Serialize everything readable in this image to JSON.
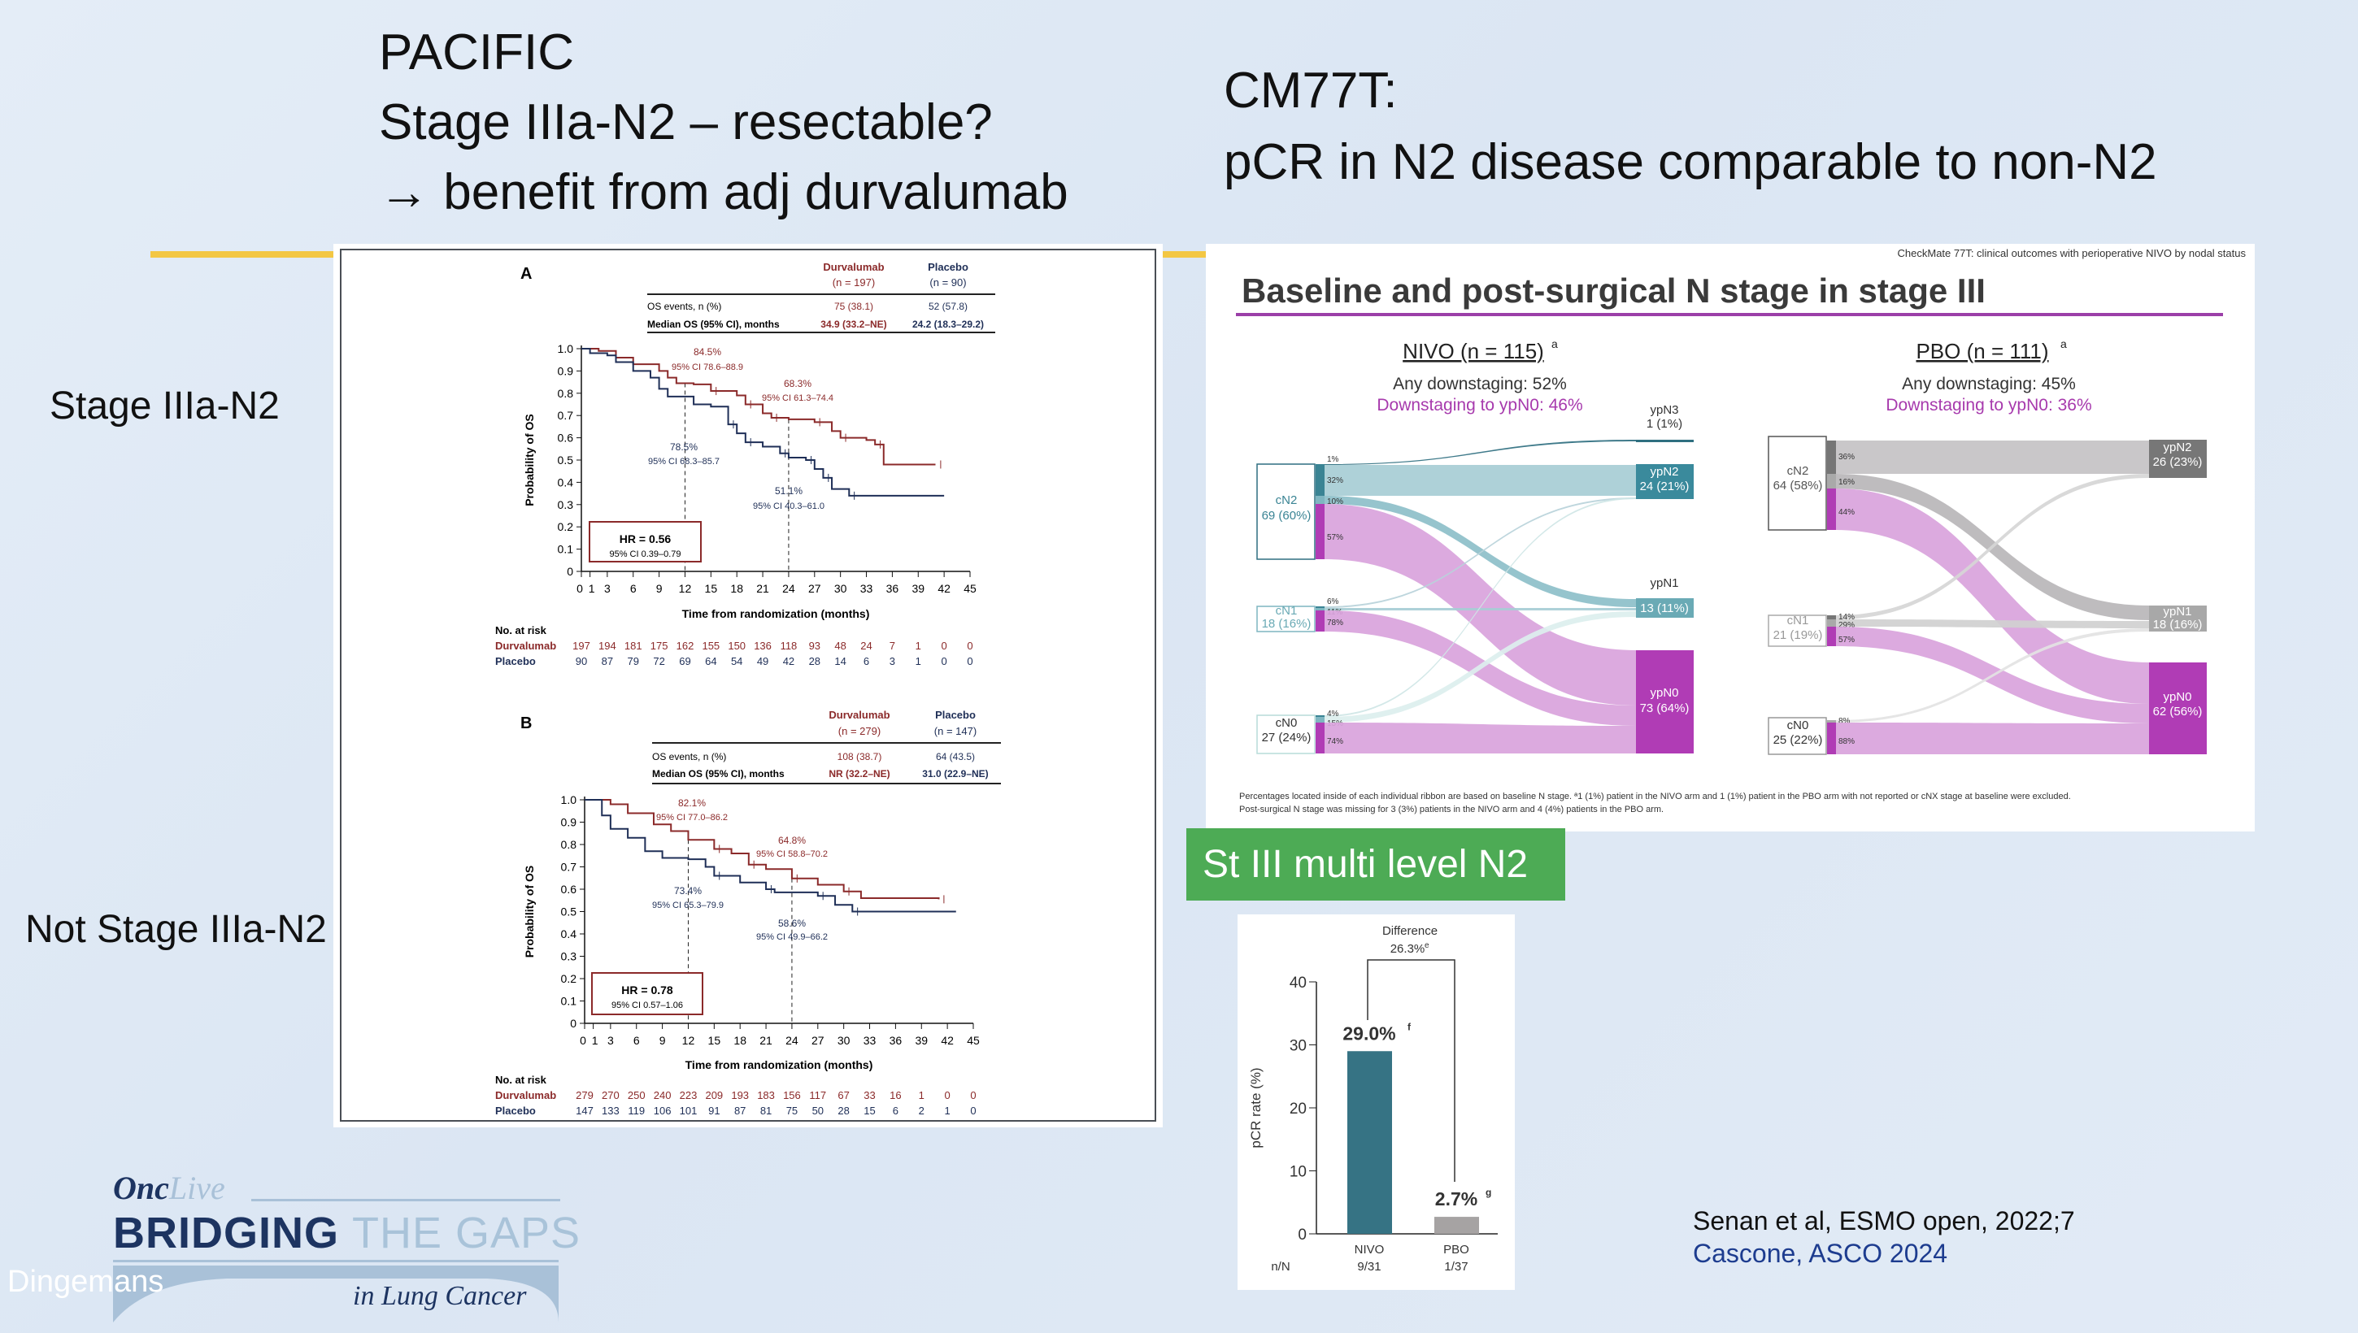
{
  "slide": {
    "left_title_lines": [
      "PACIFIC",
      "Stage IIIa-N2 – resectable?",
      "→ benefit from adj durvalumab"
    ],
    "right_title_lines": [
      "CM77T:",
      "pCR in N2 disease comparable to non-N2"
    ],
    "row_label_top": "Stage IIIa-N2",
    "row_label_bottom": "Not Stage IIIa-N2",
    "green_box": "St III multi level N2",
    "citations": [
      "Senan et al, ESMO open, 2022;7",
      "Cascone, ASCO 2024"
    ],
    "author": "Dingemans"
  },
  "logo": {
    "brand_a": "Onc",
    "brand_b": "Live",
    "line1_a": "BRIDGING",
    "line1_b": "THE GAPS",
    "line2": "in Lung Cancer"
  },
  "colors": {
    "durvalumab": "#8b2a2a",
    "placebo": "#1f2f57",
    "nivo": "#367384",
    "pbo": "#a6a3a3",
    "magenta": "#b03cb5",
    "green": "#4dab55",
    "yellow": "#f3c744"
  },
  "chart_data": [
    {
      "type": "line",
      "subtype": "kaplan-meier",
      "panel_label": "A",
      "header": {
        "arm1": "Durvalumab",
        "arm1_n": "(n = 197)",
        "arm2": "Placebo",
        "arm2_n": "(n = 90)"
      },
      "table_rows": [
        {
          "label": "OS events, n (%)",
          "v1": "75 (38.1)",
          "v2": "52 (57.8)"
        },
        {
          "label": "Median OS (95% CI), months",
          "v1": "34.9 (33.2–NE)",
          "v2": "24.2 (18.3–29.2)"
        }
      ],
      "xlabel": "Time from randomization (months)",
      "ylabel": "Probability of OS",
      "xlim": [
        0,
        45
      ],
      "ylim": [
        0,
        1
      ],
      "xticks": [
        0,
        1,
        3,
        6,
        9,
        12,
        15,
        18,
        21,
        24,
        27,
        30,
        33,
        36,
        39,
        42,
        45
      ],
      "yticks": [
        0,
        0.1,
        0.2,
        0.3,
        0.4,
        0.5,
        0.6,
        0.7,
        0.8,
        0.9,
        1.0
      ],
      "ytick_labels": [
        "0",
        "0.1",
        "0.2",
        "0.3",
        "0.4",
        "0.5",
        "0.6",
        "0.7",
        "0.8",
        "0.9",
        "1.0"
      ],
      "landmarks": [
        12,
        24
      ],
      "annotations": [
        {
          "value": "84.5%",
          "ci": "95% CI 78.6–88.9",
          "arm": 0
        },
        {
          "value": "68.3%",
          "ci": "95% CI 61.3–74.4",
          "arm": 0
        },
        {
          "value": "78.5%",
          "ci": "95% CI 68.3–85.7",
          "arm": 1
        },
        {
          "value": "51.1%",
          "ci": "95% CI 40.3–61.0",
          "arm": 1
        }
      ],
      "hr": "HR = 0.56",
      "hr_ci": "95% CI 0.39–0.79",
      "risk": {
        "title": "No. at risk",
        "months": [
          0,
          3,
          6,
          9,
          12,
          15,
          18,
          21,
          24,
          27,
          30,
          33,
          36,
          39,
          42,
          45
        ],
        "arms": [
          {
            "name": "Durvalumab",
            "values": [
              "197",
              "194",
              "181",
              "175",
              "162",
              "155",
              "150",
              "136",
              "118",
              "93",
              "48",
              "24",
              "7",
              "1",
              "0",
              "0"
            ]
          },
          {
            "name": "Placebo",
            "values": [
              "90",
              "87",
              "79",
              "72",
              "69",
              "64",
              "54",
              "49",
              "42",
              "28",
              "14",
              "6",
              "3",
              "1",
              "0",
              "0"
            ]
          }
        ]
      },
      "series": [
        {
          "name": "Durvalumab",
          "points": [
            [
              0,
              1
            ],
            [
              2,
              0.99
            ],
            [
              4,
              0.96
            ],
            [
              6,
              0.93
            ],
            [
              9,
              0.9
            ],
            [
              10,
              0.87
            ],
            [
              11,
              0.845
            ],
            [
              13,
              0.84
            ],
            [
              15,
              0.81
            ],
            [
              18,
              0.79
            ],
            [
              19,
              0.75
            ],
            [
              21,
              0.71
            ],
            [
              22,
              0.69
            ],
            [
              24,
              0.683
            ],
            [
              27,
              0.67
            ],
            [
              29,
              0.63
            ],
            [
              30,
              0.6
            ],
            [
              33,
              0.59
            ],
            [
              34,
              0.57
            ],
            [
              35,
              0.48
            ],
            [
              41,
              0.48
            ]
          ]
        },
        {
          "name": "Placebo",
          "points": [
            [
              0,
              1
            ],
            [
              1,
              0.98
            ],
            [
              3,
              0.97
            ],
            [
              4,
              0.94
            ],
            [
              6,
              0.9
            ],
            [
              8,
              0.87
            ],
            [
              9,
              0.82
            ],
            [
              10,
              0.785
            ],
            [
              13,
              0.75
            ],
            [
              15,
              0.74
            ],
            [
              17,
              0.66
            ],
            [
              18,
              0.62
            ],
            [
              19,
              0.58
            ],
            [
              21,
              0.56
            ],
            [
              23,
              0.53
            ],
            [
              24,
              0.511
            ],
            [
              26,
              0.5
            ],
            [
              27,
              0.46
            ],
            [
              28,
              0.42
            ],
            [
              29,
              0.37
            ],
            [
              31,
              0.34
            ],
            [
              42,
              0.34
            ]
          ]
        }
      ]
    },
    {
      "type": "line",
      "subtype": "kaplan-meier",
      "panel_label": "B",
      "header": {
        "arm1": "Durvalumab",
        "arm1_n": "(n = 279)",
        "arm2": "Placebo",
        "arm2_n": "(n = 147)"
      },
      "table_rows": [
        {
          "label": "OS events, n (%)",
          "v1": "108 (38.7)",
          "v2": "64 (43.5)"
        },
        {
          "label": "Median OS (95% CI), months",
          "v1": "NR (32.2–NE)",
          "v2": "31.0 (22.9–NE)"
        }
      ],
      "xlabel": "Time from randomization (months)",
      "ylabel": "Probability of OS",
      "xlim": [
        0,
        45
      ],
      "ylim": [
        0,
        1
      ],
      "xticks": [
        0,
        1,
        3,
        6,
        9,
        12,
        15,
        18,
        21,
        24,
        27,
        30,
        33,
        36,
        39,
        42,
        45
      ],
      "yticks": [
        0,
        0.1,
        0.2,
        0.3,
        0.4,
        0.5,
        0.6,
        0.7,
        0.8,
        0.9,
        1.0
      ],
      "ytick_labels": [
        "0",
        "0.1",
        "0.2",
        "0.3",
        "0.4",
        "0.5",
        "0.6",
        "0.7",
        "0.8",
        "0.9",
        "1.0"
      ],
      "landmarks": [
        12,
        24
      ],
      "annotations": [
        {
          "value": "82.1%",
          "ci": "95% CI 77.0–86.2",
          "arm": 0
        },
        {
          "value": "64.8%",
          "ci": "95% CI 58.8–70.2",
          "arm": 0
        },
        {
          "value": "73.4%",
          "ci": "95% CI 65.3–79.9",
          "arm": 1
        },
        {
          "value": "58.6%",
          "ci": "95% CI 49.9–66.2",
          "arm": 1
        }
      ],
      "hr": "HR = 0.78",
      "hr_ci": "95% CI 0.57–1.06",
      "risk": {
        "title": "No. at risk",
        "months": [
          0,
          3,
          6,
          9,
          12,
          15,
          18,
          21,
          24,
          27,
          30,
          33,
          36,
          39,
          42,
          45
        ],
        "arms": [
          {
            "name": "Durvalumab",
            "values": [
              "279",
              "270",
              "250",
              "240",
              "223",
              "209",
              "193",
              "183",
              "156",
              "117",
              "67",
              "33",
              "16",
              "1",
              "0",
              "0"
            ]
          },
          {
            "name": "Placebo",
            "values": [
              "147",
              "133",
              "119",
              "106",
              "101",
              "91",
              "87",
              "81",
              "75",
              "50",
              "28",
              "15",
              "6",
              "2",
              "1",
              "0"
            ]
          }
        ]
      },
      "series": [
        {
          "name": "Durvalumab",
          "points": [
            [
              0,
              1
            ],
            [
              3,
              0.98
            ],
            [
              5,
              0.94
            ],
            [
              8,
              0.89
            ],
            [
              10,
              0.86
            ],
            [
              12,
              0.821
            ],
            [
              15,
              0.78
            ],
            [
              17,
              0.76
            ],
            [
              19,
              0.71
            ],
            [
              21,
              0.69
            ],
            [
              24,
              0.648
            ],
            [
              27,
              0.62
            ],
            [
              30,
              0.59
            ],
            [
              32,
              0.56
            ],
            [
              41,
              0.555
            ]
          ]
        },
        {
          "name": "Placebo",
          "points": [
            [
              0,
              1
            ],
            [
              2,
              0.93
            ],
            [
              3,
              0.87
            ],
            [
              5,
              0.83
            ],
            [
              7,
              0.77
            ],
            [
              9,
              0.74
            ],
            [
              12,
              0.734
            ],
            [
              14,
              0.7
            ],
            [
              15,
              0.66
            ],
            [
              18,
              0.63
            ],
            [
              21,
              0.6
            ],
            [
              22,
              0.586
            ],
            [
              27,
              0.57
            ],
            [
              29,
              0.53
            ],
            [
              31,
              0.5
            ],
            [
              43,
              0.5
            ]
          ]
        }
      ]
    },
    {
      "type": "sankey",
      "header_note": "CheckMate 77T: clinical outcomes  with perioperative NIVO by nodal status",
      "title": "Baseline and post-surgical N stage in stage III",
      "arms": [
        {
          "title": "NIVO (n = 115)",
          "sup": "a",
          "any": "Any downstaging: 52%",
          "ypn0": "Downstaging to ypN0: 46%",
          "sources": [
            {
              "label": "cN2",
              "count": "69 (60%)"
            },
            {
              "label": "cN1",
              "count": "18 (16%)"
            },
            {
              "label": "cN0",
              "count": "27 (24%)"
            }
          ],
          "targets": [
            {
              "label": "ypN3",
              "count": "1 (1%)"
            },
            {
              "label": "ypN2",
              "count": "24 (21%)"
            },
            {
              "label": "ypN1",
              "count": "13 (11%)"
            },
            {
              "label": "ypN0",
              "count": "73 (64%)"
            }
          ],
          "flows": [
            {
              "from": "cN2",
              "to": "ypN3",
              "pct": "1%"
            },
            {
              "from": "cN2",
              "to": "ypN2",
              "pct": "32%"
            },
            {
              "from": "cN2",
              "to": "ypN1",
              "pct": "10%"
            },
            {
              "from": "cN2",
              "to": "ypN0",
              "pct": "57%"
            },
            {
              "from": "cN1",
              "to": "ypN2",
              "pct": "6%"
            },
            {
              "from": "cN1",
              "to": "ypN1",
              "pct": "11%"
            },
            {
              "from": "cN1",
              "to": "ypN0",
              "pct": "78%"
            },
            {
              "from": "cN0",
              "to": "ypN2",
              "pct": "4%"
            },
            {
              "from": "cN0",
              "to": "ypN1",
              "pct": "15%"
            },
            {
              "from": "cN0",
              "to": "ypN0",
              "pct": "74%"
            }
          ]
        },
        {
          "title": "PBO (n = 111)",
          "sup": "a",
          "any": "Any downstaging: 45%",
          "ypn0": "Downstaging to ypN0: 36%",
          "sources": [
            {
              "label": "cN2",
              "count": "64 (58%)"
            },
            {
              "label": "cN1",
              "count": "21 (19%)"
            },
            {
              "label": "cN0",
              "count": "25 (22%)"
            }
          ],
          "targets": [
            {
              "label": "ypN2",
              "count": "26 (23%)"
            },
            {
              "label": "ypN1",
              "count": "18 (16%)"
            },
            {
              "label": "ypN0",
              "count": "62 (56%)"
            }
          ],
          "flows": [
            {
              "from": "cN2",
              "to": "ypN2",
              "pct": "36%"
            },
            {
              "from": "cN2",
              "to": "ypN1",
              "pct": "16%"
            },
            {
              "from": "cN2",
              "to": "ypN0",
              "pct": "44%"
            },
            {
              "from": "cN1",
              "to": "ypN2",
              "pct": "14%"
            },
            {
              "from": "cN1",
              "to": "ypN1",
              "pct": "29%"
            },
            {
              "from": "cN1",
              "to": "ypN0",
              "pct": "57%"
            },
            {
              "from": "cN0",
              "to": "ypN1",
              "pct": "8%"
            },
            {
              "from": "cN0",
              "to": "ypN0",
              "pct": "88%"
            }
          ]
        }
      ],
      "footnotes": [
        "Percentages located inside of each individual ribbon are based on baseline N stage. ª1 (1%) patient in the NIVO arm and 1 (1%) patient in the PBO arm with not reported or cNX stage at baseline were excluded.",
        "Post-surgical N stage was missing for 3 (3%) patients in the NIVO arm and 4 (4%) patients in the PBO arm."
      ]
    },
    {
      "type": "bar",
      "categories": [
        "NIVO",
        "PBO"
      ],
      "values": [
        29.0,
        2.7
      ],
      "value_labels": [
        "29.0%",
        "2.7%"
      ],
      "value_sups": [
        "f",
        "g"
      ],
      "nN_label": "n/N",
      "nN": [
        "9/31",
        "1/37"
      ],
      "difference_label": "Difference",
      "difference_value": "26.3%",
      "difference_sup": "e",
      "ylabel": "pCR rate (%)",
      "ylim": [
        0,
        40
      ],
      "yticks": [
        0,
        10,
        20,
        30,
        40
      ]
    }
  ]
}
